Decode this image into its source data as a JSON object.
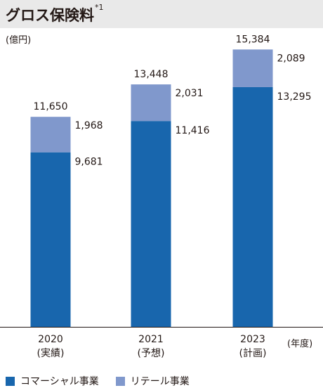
{
  "title": {
    "text": "グロス保険料",
    "note": "*1"
  },
  "unit": "(億円)",
  "x_unit": "(年度)",
  "colors": {
    "commercial": "#1866ad",
    "retail": "#8098cc",
    "title_bg": "#e9e9e9",
    "axis": "#231815"
  },
  "chart_data": {
    "type": "bar",
    "stacked": true,
    "categories": [
      "2020\n(実績)",
      "2021\n(予想)",
      "2023\n(計画)"
    ],
    "category_years": [
      "2020",
      "2021",
      "2023"
    ],
    "category_notes": [
      "(実績)",
      "(予想)",
      "(計画)"
    ],
    "series": [
      {
        "name": "コマーシャル事業",
        "values": [
          9681,
          11416,
          13295
        ]
      },
      {
        "name": "リテール事業",
        "values": [
          1968,
          2031,
          2089
        ]
      }
    ],
    "totals": [
      11650,
      13448,
      15384
    ],
    "value_labels": {
      "commercial": [
        "9,681",
        "11,416",
        "13,295"
      ],
      "retail": [
        "1,968",
        "2,031",
        "2,089"
      ],
      "totals": [
        "11,650",
        "13,448",
        "15,384"
      ]
    },
    "ylim": [
      0,
      15384
    ],
    "grid": false,
    "legend_position": "bottom"
  },
  "legend": [
    {
      "label": "コマーシャル事業",
      "color": "#1866ad"
    },
    {
      "label": "リテール事業",
      "color": "#8098cc"
    }
  ]
}
